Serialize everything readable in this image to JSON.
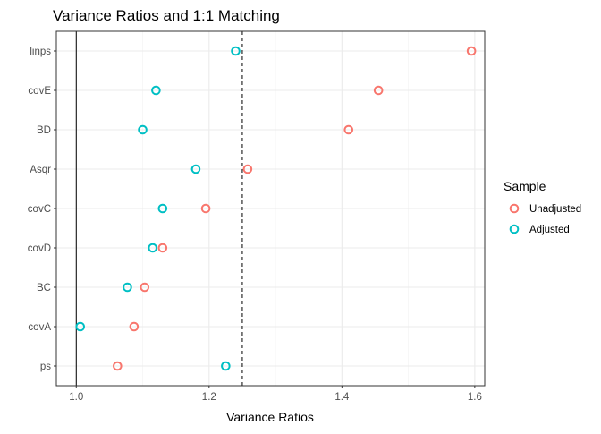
{
  "chart_data": {
    "type": "scatter",
    "title": "Variance Ratios and 1:1 Matching",
    "xlabel": "Variance Ratios",
    "ylabel": "",
    "xlim": [
      0.97,
      1.615
    ],
    "x_ticks": [
      1.0,
      1.2,
      1.4,
      1.6
    ],
    "x_tick_labels": [
      "1.0",
      "1.2",
      "1.4",
      "1.6"
    ],
    "categories": [
      "linps",
      "covE",
      "BD",
      "Asqr",
      "covC",
      "covD",
      "BC",
      "covA",
      "ps"
    ],
    "series": [
      {
        "name": "Unadjusted",
        "color": "#F8766D",
        "values": [
          1.595,
          1.455,
          1.41,
          1.258,
          1.195,
          1.13,
          1.103,
          1.087,
          1.062
        ]
      },
      {
        "name": "Adjusted",
        "color": "#00BFC4",
        "values": [
          1.24,
          1.12,
          1.1,
          1.18,
          1.13,
          1.115,
          1.077,
          1.006,
          1.225
        ]
      }
    ],
    "reference_lines": [
      {
        "x": 1.0,
        "style": "solid"
      },
      {
        "x": 1.25,
        "style": "dashed"
      }
    ],
    "grid": true,
    "legend": {
      "title": "Sample",
      "position": "right"
    }
  }
}
